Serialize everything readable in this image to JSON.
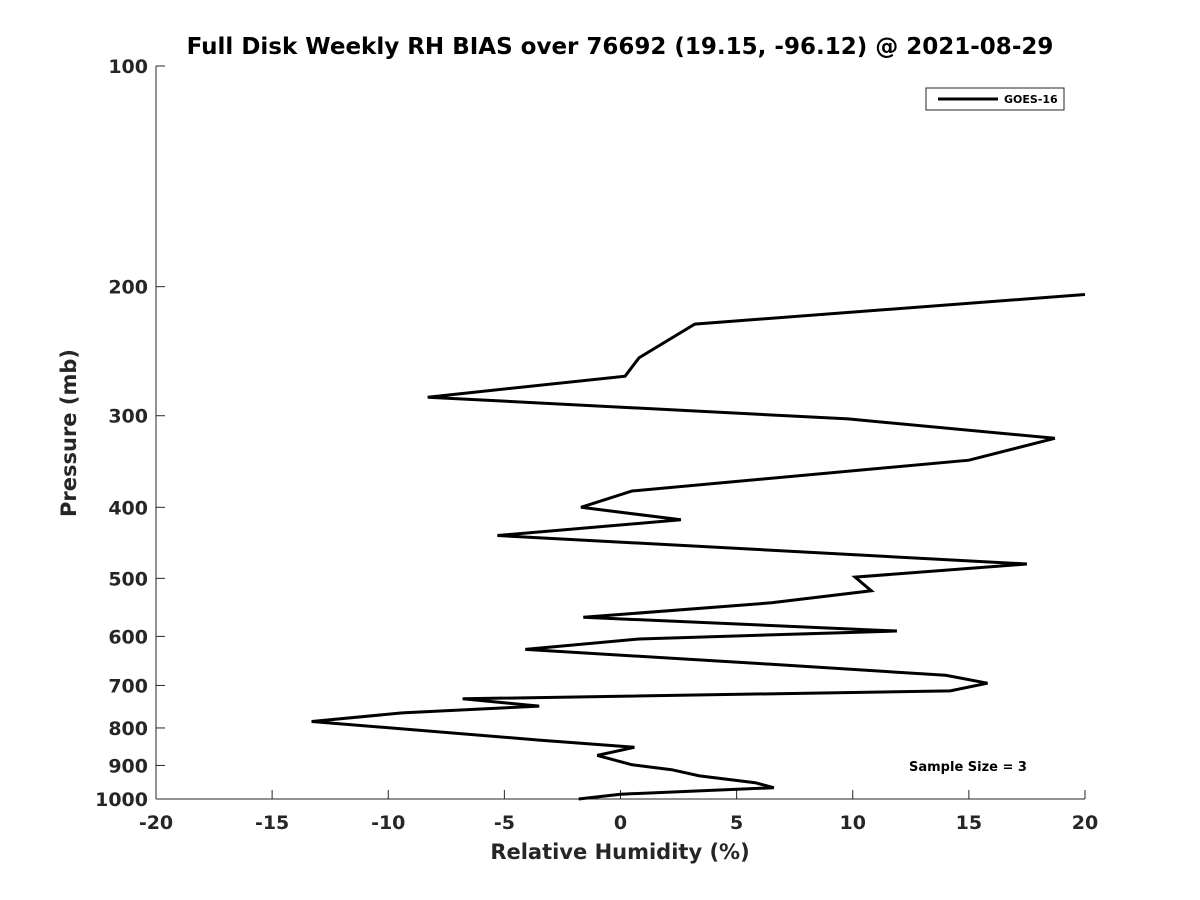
{
  "chart_data": {
    "type": "line",
    "title": "Full Disk Weekly RH BIAS over 76692 (19.15, -96.12) @ 2021-08-29",
    "xlabel": "Relative Humidity (%)",
    "ylabel": "Pressure (mb)",
    "xlim": [
      -20,
      20
    ],
    "ylim": [
      1000,
      100
    ],
    "yscale": "log",
    "grid": false,
    "legend_position": "top-right",
    "x_ticks": [
      -20,
      -15,
      -10,
      -5,
      0,
      5,
      10,
      15,
      20
    ],
    "x_tick_labels": [
      "-20",
      "-15",
      "-10",
      "-5",
      "0",
      "5",
      "10",
      "15",
      "20"
    ],
    "y_ticks": [
      100,
      200,
      300,
      400,
      500,
      600,
      700,
      800,
      900,
      1000
    ],
    "y_tick_labels": [
      "100",
      "200",
      "300",
      "400",
      "500",
      "600",
      "700",
      "800",
      "900",
      "1000"
    ],
    "series": [
      {
        "name": "GOES-16",
        "color": "#000000",
        "points": [
          {
            "x": 20.0,
            "y": 205
          },
          {
            "x": 3.2,
            "y": 225
          },
          {
            "x": 0.8,
            "y": 250
          },
          {
            "x": 0.2,
            "y": 265
          },
          {
            "x": -8.3,
            "y": 283
          },
          {
            "x": 9.8,
            "y": 303
          },
          {
            "x": 18.7,
            "y": 322
          },
          {
            "x": 15.0,
            "y": 345
          },
          {
            "x": 0.5,
            "y": 380
          },
          {
            "x": -1.7,
            "y": 400
          },
          {
            "x": 2.6,
            "y": 416
          },
          {
            "x": -5.3,
            "y": 437
          },
          {
            "x": 17.5,
            "y": 478
          },
          {
            "x": 10.1,
            "y": 498
          },
          {
            "x": 10.8,
            "y": 520
          },
          {
            "x": 6.5,
            "y": 540
          },
          {
            "x": -1.6,
            "y": 565
          },
          {
            "x": 11.9,
            "y": 590
          },
          {
            "x": 0.8,
            "y": 605
          },
          {
            "x": -4.1,
            "y": 625
          },
          {
            "x": 6.5,
            "y": 655
          },
          {
            "x": 14.0,
            "y": 678
          },
          {
            "x": 15.8,
            "y": 695
          },
          {
            "x": 14.2,
            "y": 712
          },
          {
            "x": -6.8,
            "y": 730
          },
          {
            "x": -3.5,
            "y": 747
          },
          {
            "x": -9.4,
            "y": 763
          },
          {
            "x": -13.3,
            "y": 784
          },
          {
            "x": -3.5,
            "y": 831
          },
          {
            "x": 0.6,
            "y": 850
          },
          {
            "x": -1.0,
            "y": 872
          },
          {
            "x": 0.5,
            "y": 898
          },
          {
            "x": 2.2,
            "y": 912
          },
          {
            "x": 3.4,
            "y": 930
          },
          {
            "x": 5.8,
            "y": 950
          },
          {
            "x": 6.6,
            "y": 965
          },
          {
            "x": 0.0,
            "y": 985
          },
          {
            "x": -1.8,
            "y": 1000
          }
        ]
      }
    ],
    "annotations": [
      {
        "text": "Sample Size = 3"
      }
    ]
  }
}
